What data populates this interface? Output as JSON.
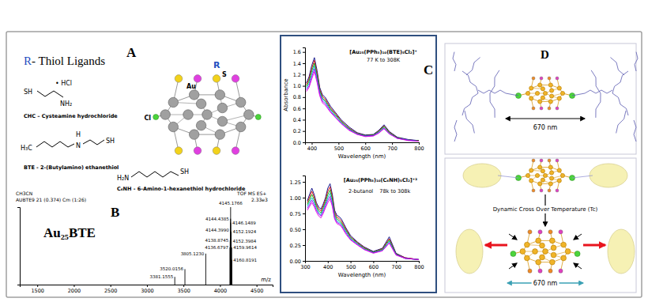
{
  "panels": {
    "A": {
      "letter": "A",
      "heading": [
        "R",
        "- Thiol Ligands"
      ],
      "ligands": [
        {
          "formula": [
            "SH",
            "• HCl",
            "NH₂"
          ],
          "name": "CHC – Cysteamine hydrochloride"
        },
        {
          "formula": [
            "H₃C",
            "H",
            "N",
            "SH"
          ],
          "name": "BTE - 2-(Butylamino) ethanethiol"
        },
        {
          "formula": [
            "H₂N",
            "SH"
          ],
          "name": "C₆NH - 6-Amino-1-hexanethiol hydrochloride"
        }
      ],
      "cluster_labels": [
        "R",
        "S",
        "Au",
        "Cl"
      ]
    },
    "B": {
      "letter": "B",
      "label": "Au₂₅BTE",
      "header": [
        "CH3CN",
        "AUBTE9 21 (0.374) Cm (1:26)",
        "TOF MS ES+",
        "2.33e3"
      ]
    },
    "C": {
      "letter": "C"
    },
    "D": {
      "letter": "D",
      "top_distance": "670 nm",
      "transition": "Dynamic Cross Over Temperature (Tc)",
      "bottom_distance": "670 nm"
    }
  },
  "chart_data": [
    {
      "type": "stem",
      "x": [
        3381.1555,
        3520.0156,
        3805.123,
        4136.6797,
        4138.8745,
        4144.399,
        4144.4385,
        4145.1766,
        4146.1489,
        4152.1924,
        4152.3984,
        4159.9614,
        4160.8191
      ],
      "values": [
        10,
        20,
        40,
        48,
        57,
        70,
        85,
        100,
        80,
        68,
        56,
        48,
        32
      ],
      "peak_labels": [
        "3381.1555",
        "3520.0156",
        "3805.1230",
        "4136.6797",
        "4138.8745",
        "4144.3990",
        "4144.4385",
        "4145.1766",
        "4146.1489",
        "4152.1924",
        "4152.3984",
        "4159.9614",
        "4160.8191"
      ],
      "color": "#000000",
      "xlabel": "m/z",
      "xlim": [
        1260,
        4720
      ],
      "xticks": [
        1500,
        2000,
        2500,
        3000,
        3500,
        4000,
        4500
      ],
      "ylim": [
        0,
        100
      ],
      "tick_labels": "x"
    },
    {
      "type": "line",
      "title": "[Au₂₅(PPh₃)₁₀(BTE)₅Cl₂]⁺",
      "subtitle": "77 K to 308K",
      "xlabel": "Wavelength (nm)",
      "ylabel": "Absorbance",
      "x": [
        380,
        390,
        400,
        410,
        420,
        430,
        440,
        450,
        470,
        490,
        510,
        540,
        570,
        600,
        630,
        650,
        670,
        690,
        720,
        760,
        800
      ],
      "series": [
        {
          "color": "#000080",
          "values": [
            1.05,
            1.16,
            1.36,
            1.5,
            1.27,
            0.97,
            0.84,
            0.8,
            0.64,
            0.52,
            0.4,
            0.27,
            0.17,
            0.13,
            0.14,
            0.21,
            0.31,
            0.19,
            0.09,
            0.05,
            0.03
          ]
        },
        {
          "color": "#d40000",
          "values": [
            1.02,
            1.12,
            1.31,
            1.45,
            1.22,
            0.94,
            0.81,
            0.77,
            0.61,
            0.5,
            0.38,
            0.25,
            0.16,
            0.12,
            0.13,
            0.2,
            0.29,
            0.18,
            0.08,
            0.04,
            0.03
          ]
        },
        {
          "color": "#00a000",
          "values": [
            0.99,
            1.08,
            1.26,
            1.4,
            1.18,
            0.91,
            0.78,
            0.74,
            0.59,
            0.48,
            0.37,
            0.24,
            0.15,
            0.12,
            0.13,
            0.19,
            0.28,
            0.17,
            0.08,
            0.04,
            0.03
          ]
        },
        {
          "color": "#00b4c8",
          "values": [
            0.96,
            1.04,
            1.21,
            1.35,
            1.14,
            0.88,
            0.76,
            0.72,
            0.57,
            0.46,
            0.35,
            0.23,
            0.15,
            0.11,
            0.12,
            0.18,
            0.26,
            0.16,
            0.07,
            0.04,
            0.02
          ]
        },
        {
          "color": "#8b00ff",
          "values": [
            0.93,
            1.0,
            1.16,
            1.3,
            1.1,
            0.85,
            0.73,
            0.69,
            0.55,
            0.44,
            0.34,
            0.22,
            0.14,
            0.11,
            0.12,
            0.17,
            0.25,
            0.15,
            0.07,
            0.04,
            0.02
          ]
        },
        {
          "color": "#e000e0",
          "values": [
            0.9,
            0.97,
            1.12,
            1.25,
            1.06,
            0.82,
            0.7,
            0.66,
            0.53,
            0.43,
            0.33,
            0.21,
            0.14,
            0.1,
            0.11,
            0.16,
            0.24,
            0.15,
            0.07,
            0.03,
            0.02
          ]
        }
      ],
      "xlim": [
        375,
        800
      ],
      "xticks": [
        400,
        500,
        600,
        700,
        800
      ],
      "ylim": [
        0,
        1.68
      ],
      "yticks": [
        {
          "value": 0,
          "label": "0.0"
        },
        {
          "value": 0.2,
          "label": "0.2"
        },
        {
          "value": 0.4,
          "label": "0.4"
        },
        {
          "value": 0.6,
          "label": "0.6"
        },
        {
          "value": 0.8,
          "label": "0.8"
        },
        {
          "value": 1,
          "label": "1.0"
        },
        {
          "value": 1.2,
          "label": "1.2"
        },
        {
          "value": 1.4,
          "label": "1.4"
        },
        {
          "value": 1.6,
          "label": "1.6"
        }
      ]
    },
    {
      "type": "line",
      "title": "[Au₂₅(PPh₃)₁₀(C₆NH)₅Cl₂]⁺²",
      "subtitle": "2-butanol",
      "annotations": [
        "78k to 308k"
      ],
      "xlabel": "Wavelength (nm)",
      "x": [
        310,
        320,
        330,
        340,
        350,
        360,
        370,
        380,
        390,
        400,
        410,
        420,
        430,
        440,
        450,
        460,
        480,
        500,
        530,
        560,
        600,
        640,
        670,
        700,
        740,
        800
      ],
      "series": [
        {
          "color": "#000080",
          "values": [
            0.95,
            1.05,
            1.15,
            1.05,
            0.92,
            0.85,
            0.82,
            0.9,
            1.0,
            1.15,
            1.22,
            1.05,
            0.8,
            0.72,
            0.7,
            0.66,
            0.52,
            0.4,
            0.3,
            0.22,
            0.15,
            0.2,
            0.38,
            0.12,
            0.05,
            0.02
          ]
        },
        {
          "color": "#d40000",
          "values": [
            0.92,
            1.01,
            1.1,
            1.01,
            0.89,
            0.82,
            0.79,
            0.87,
            0.97,
            1.1,
            1.17,
            1.01,
            0.77,
            0.69,
            0.67,
            0.63,
            0.5,
            0.38,
            0.29,
            0.21,
            0.14,
            0.19,
            0.35,
            0.11,
            0.05,
            0.02
          ]
        },
        {
          "color": "#00a000",
          "values": [
            0.89,
            0.97,
            1.05,
            0.97,
            0.86,
            0.79,
            0.76,
            0.84,
            0.93,
            1.05,
            1.12,
            0.97,
            0.74,
            0.66,
            0.64,
            0.6,
            0.48,
            0.37,
            0.28,
            0.2,
            0.14,
            0.18,
            0.33,
            0.11,
            0.04,
            0.02
          ]
        },
        {
          "color": "#00b4c8",
          "values": [
            0.86,
            0.93,
            1.0,
            0.93,
            0.83,
            0.76,
            0.73,
            0.81,
            0.9,
            1.0,
            1.07,
            0.93,
            0.71,
            0.63,
            0.61,
            0.58,
            0.46,
            0.35,
            0.27,
            0.19,
            0.13,
            0.17,
            0.31,
            0.1,
            0.04,
            0.02
          ]
        },
        {
          "color": "#8b00ff",
          "values": [
            0.83,
            0.89,
            0.96,
            0.89,
            0.8,
            0.74,
            0.71,
            0.78,
            0.87,
            0.96,
            1.02,
            0.89,
            0.68,
            0.61,
            0.59,
            0.56,
            0.44,
            0.34,
            0.26,
            0.18,
            0.13,
            0.16,
            0.29,
            0.1,
            0.04,
            0.02
          ]
        },
        {
          "color": "#e000e0",
          "values": [
            0.8,
            0.86,
            0.92,
            0.86,
            0.77,
            0.71,
            0.68,
            0.75,
            0.84,
            0.92,
            0.98,
            0.86,
            0.66,
            0.59,
            0.57,
            0.54,
            0.42,
            0.33,
            0.25,
            0.18,
            0.12,
            0.16,
            0.28,
            0.09,
            0.04,
            0.02
          ]
        }
      ],
      "xlim": [
        300,
        800
      ],
      "xticks": [
        300,
        400,
        500,
        600,
        700,
        800
      ],
      "ylim": [
        0,
        1.35
      ],
      "yticks": [
        {
          "value": 0,
          "label": "0.00"
        },
        0.25,
        {
          "value": 0.5,
          "label": "0.50"
        },
        0.75,
        {
          "value": 1,
          "label": "1.00"
        },
        1.25
      ]
    }
  ]
}
